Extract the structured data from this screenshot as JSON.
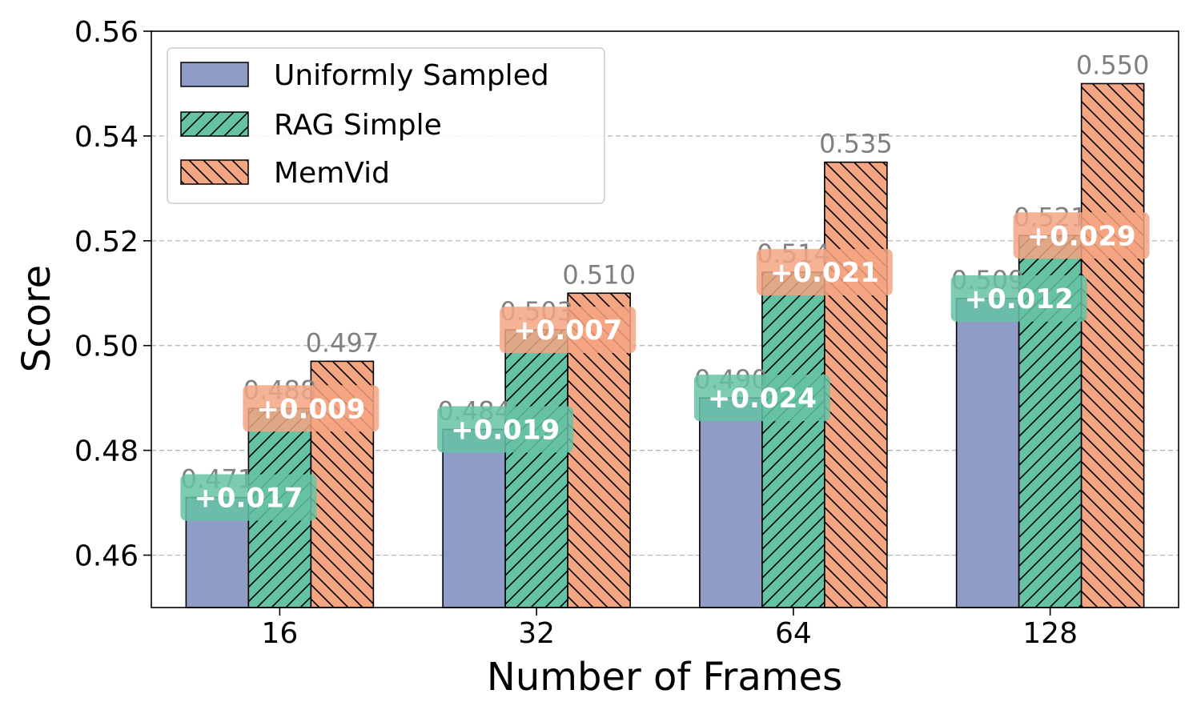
{
  "chart_data": {
    "type": "bar",
    "title": "",
    "xlabel": "Number of Frames",
    "ylabel": "Score",
    "categories": [
      "16",
      "32",
      "64",
      "128"
    ],
    "ylim": [
      0.45,
      0.56
    ],
    "yticks": [
      "0.46",
      "0.48",
      "0.50",
      "0.52",
      "0.54",
      "0.56"
    ],
    "grid": "horizontal dashed",
    "legend_position": "top-left",
    "series": [
      {
        "name": "Uniformly Sampled",
        "values": [
          0.471,
          0.484,
          0.49,
          0.509
        ],
        "labels": [
          "0.471",
          "0.484",
          "0.490",
          "0.509"
        ],
        "color": "#8f9dc6",
        "hatch": "none"
      },
      {
        "name": "RAG Simple",
        "values": [
          0.488,
          0.503,
          0.514,
          0.521
        ],
        "labels": [
          "0.488",
          "0.503",
          "0.514",
          "0.521"
        ],
        "color": "#66c2a5",
        "hatch": "forward-diagonal"
      },
      {
        "name": "MemVid",
        "values": [
          0.497,
          0.51,
          0.535,
          0.55
        ],
        "labels": [
          "0.497",
          "0.510",
          "0.535",
          "0.550"
        ],
        "color": "#f4a582",
        "hatch": "back-diagonal"
      }
    ],
    "improvements": [
      {
        "over": "Uniformly Sampled",
        "series": "RAG Simple",
        "labels": [
          "+0.017",
          "+0.019",
          "+0.024",
          "+0.012"
        ],
        "color": "#66c2a5"
      },
      {
        "over": "RAG Simple",
        "series": "MemVid",
        "labels": [
          "+0.009",
          "+0.007",
          "+0.021",
          "+0.029"
        ],
        "color": "#f4a582"
      }
    ]
  }
}
